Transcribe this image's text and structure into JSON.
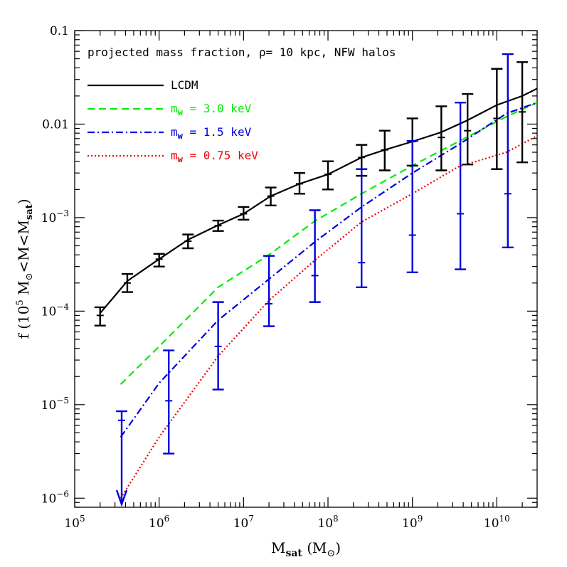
{
  "chart_data": {
    "type": "line",
    "title": "projected mass fraction, ρ= 10 kpc, NFW halos",
    "xlabel": "M_sat (M_⊙)",
    "ylabel": "f (10^5 M_⊙<M<M_sat)",
    "x_scale": "log",
    "y_scale": "log",
    "xlim": [
      100000,
      30000000000
    ],
    "ylim": [
      8e-07,
      0.1
    ],
    "grid": false,
    "legend_position": "top-left",
    "x_ticks": [
      {
        "value": 100000,
        "mantissa": "10",
        "exp": "5"
      },
      {
        "value": 1000000,
        "mantissa": "10",
        "exp": "6"
      },
      {
        "value": 10000000,
        "mantissa": "10",
        "exp": "7"
      },
      {
        "value": 100000000,
        "mantissa": "10",
        "exp": "8"
      },
      {
        "value": 1000000000,
        "mantissa": "10",
        "exp": "9"
      },
      {
        "value": 10000000000,
        "mantissa": "10",
        "exp": "10"
      }
    ],
    "y_ticks": [
      {
        "value": 0.1,
        "mantissa": "0.1",
        "exp": ""
      },
      {
        "value": 0.01,
        "mantissa": "0.01",
        "exp": ""
      },
      {
        "value": 0.001,
        "mantissa": "10",
        "exp": "−3"
      },
      {
        "value": 0.0001,
        "mantissa": "10",
        "exp": "−4"
      },
      {
        "value": 1e-05,
        "mantissa": "10",
        "exp": "−5"
      },
      {
        "value": 1e-06,
        "mantissa": "10",
        "exp": "−6"
      }
    ],
    "series": [
      {
        "name": "LCDM",
        "color": "#000000",
        "dash": "solid",
        "x": [
          200000,
          420000,
          1000000,
          2200000,
          5000000,
          10000000,
          21000000,
          46000000,
          100000000,
          250000000,
          470000000,
          1000000000,
          2200000000,
          4500000000,
          10000000000,
          20000000000,
          30000000000
        ],
        "y": [
          9.5e-05,
          0.00021,
          0.00036,
          0.00058,
          0.00083,
          0.0011,
          0.0017,
          0.0023,
          0.0029,
          0.0044,
          0.0053,
          0.0065,
          0.0082,
          0.011,
          0.016,
          0.02,
          0.024
        ]
      },
      {
        "name": "m_w = 3.0 keV",
        "color": "#00ee00",
        "dash": "dashed",
        "x": [
          350000,
          1000000,
          5000000,
          20000000,
          70000000,
          250000000,
          1000000000,
          3500000000,
          13000000000,
          30000000000
        ],
        "y": [
          1.65e-05,
          4.2e-05,
          0.00018,
          0.0004,
          0.00092,
          0.0018,
          0.0036,
          0.0065,
          0.012,
          0.017
        ]
      },
      {
        "name": "m_w = 1.5 keV",
        "color": "#0000dd",
        "dash": "dashdot",
        "x": [
          350000,
          1000000,
          5000000,
          20000000,
          70000000,
          250000000,
          1000000000,
          3500000000,
          13000000000,
          30000000000
        ],
        "y": [
          4.5e-06,
          1.7e-05,
          8e-05,
          0.00022,
          0.00055,
          0.0013,
          0.003,
          0.006,
          0.013,
          0.017
        ]
      },
      {
        "name": "m_w = 0.75 keV",
        "color": "#ee0000",
        "dash": "dotted",
        "x": [
          350000,
          1000000,
          5000000,
          20000000,
          70000000,
          250000000,
          1000000000,
          3500000000,
          13000000000,
          30000000000
        ],
        "y": [
          1e-06,
          4.5e-06,
          3.3e-05,
          0.00013,
          0.00035,
          0.0009,
          0.0018,
          0.0035,
          0.005,
          0.0075
        ]
      }
    ],
    "error_bars": [
      {
        "series": "LCDM",
        "color": "#000000",
        "points": [
          {
            "x": 200000,
            "low": 7e-05,
            "high": 0.00011,
            "mid": 9e-05
          },
          {
            "x": 420000,
            "low": 0.00016,
            "high": 0.00025,
            "mid": 0.0002
          },
          {
            "x": 1000000,
            "low": 0.0003,
            "high": 0.00041,
            "mid": 0.00036
          },
          {
            "x": 2200000,
            "low": 0.00047,
            "high": 0.00066,
            "mid": 0.00056
          },
          {
            "x": 5000000,
            "low": 0.00072,
            "high": 0.00093,
            "mid": 0.00082
          },
          {
            "x": 10000000,
            "low": 0.00095,
            "high": 0.0013,
            "mid": 0.0011
          },
          {
            "x": 21000000,
            "low": 0.00135,
            "high": 0.0021,
            "mid": 0.0017
          },
          {
            "x": 46000000,
            "low": 0.0018,
            "high": 0.003,
            "mid": 0.0023
          },
          {
            "x": 100000000,
            "low": 0.002,
            "high": 0.004,
            "mid": 0.0029
          },
          {
            "x": 250000000,
            "low": 0.0028,
            "high": 0.006,
            "mid": 0.0044
          },
          {
            "x": 470000000,
            "low": 0.0032,
            "high": 0.0085,
            "mid": 0.0053
          },
          {
            "x": 1000000000,
            "low": 0.0036,
            "high": 0.0115,
            "mid": 0.0065
          },
          {
            "x": 2200000000,
            "low": 0.0032,
            "high": 0.0155,
            "mid": 0.0072
          },
          {
            "x": 4500000000,
            "low": 0.0037,
            "high": 0.021,
            "mid": 0.0085
          },
          {
            "x": 10000000000,
            "low": 0.0033,
            "high": 0.039,
            "mid": 0.0115
          },
          {
            "x": 20000000000,
            "low": 0.0039,
            "high": 0.046,
            "mid": 0.0135
          }
        ]
      },
      {
        "series": "m_w = 1.5 keV",
        "color": "#0000dd",
        "points": [
          {
            "x": 1300000,
            "low": 3e-06,
            "high": 3.8e-05,
            "mid": 1.1e-05
          },
          {
            "x": 5000000,
            "low": 1.45e-05,
            "high": 0.000125,
            "mid": 4.2e-05
          },
          {
            "x": 20000000,
            "low": 6.9e-05,
            "high": 0.00039,
            "mid": 0.00012
          },
          {
            "x": 70000000,
            "low": 0.000125,
            "high": 0.0012,
            "mid": 0.00024
          },
          {
            "x": 250000000,
            "low": 0.00018,
            "high": 0.0033,
            "mid": 0.00033
          },
          {
            "x": 1000000000,
            "low": 0.00026,
            "high": 0.0066,
            "mid": 0.00065
          },
          {
            "x": 3700000000,
            "low": 0.00028,
            "high": 0.017,
            "mid": 0.0011
          },
          {
            "x": 13500000000,
            "low": 0.00048,
            "high": 0.056,
            "mid": 0.0018
          }
        ]
      }
    ],
    "upper_limits": [
      {
        "x": 360000,
        "high": 8.5e-06,
        "mid": 6.8e-06,
        "color": "#0000dd",
        "note": "arrow down"
      }
    ]
  }
}
